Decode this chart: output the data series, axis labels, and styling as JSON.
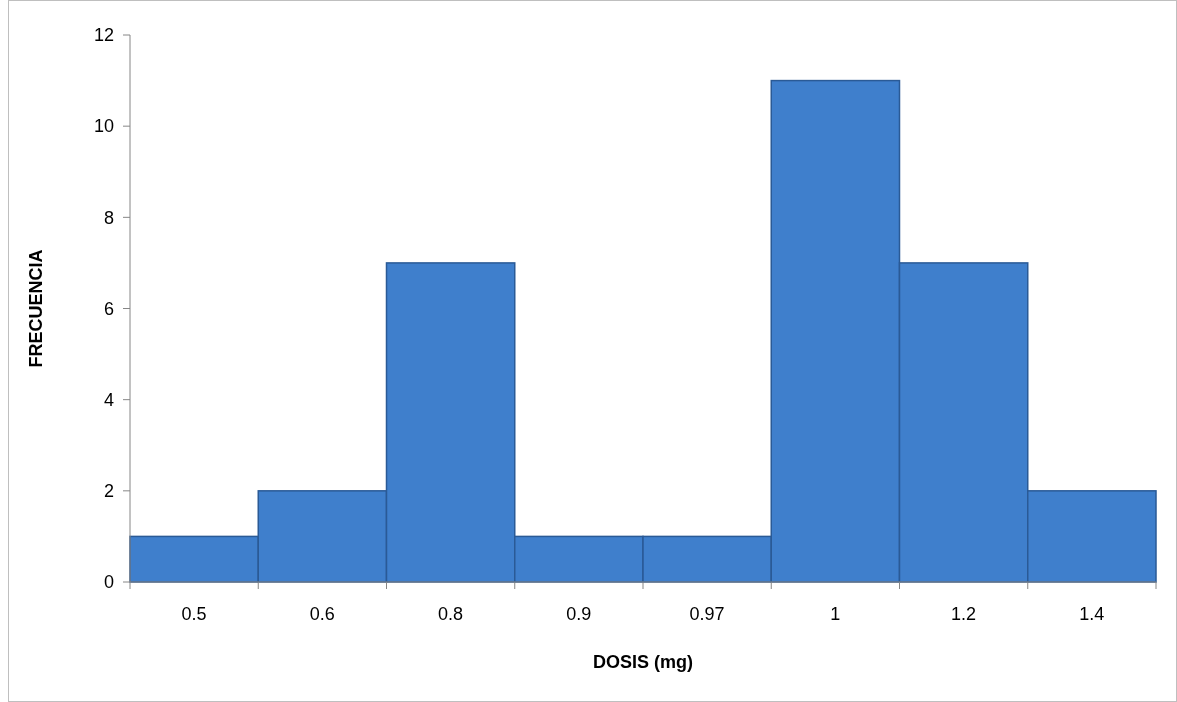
{
  "chart_data": {
    "type": "bar",
    "xlabel": "DOSIS (mg)",
    "ylabel": "FRECUENCIA",
    "categories": [
      "0.5",
      "0.6",
      "0.8",
      "0.9",
      "0.97",
      "1",
      "1.2",
      "1.4"
    ],
    "values": [
      1,
      2,
      7,
      1,
      1,
      11,
      7,
      2
    ],
    "color": "#3f7fcc",
    "ylim": [
      0,
      12
    ],
    "yticks": [
      0,
      2,
      4,
      6,
      8,
      10,
      12
    ],
    "grid": false
  }
}
